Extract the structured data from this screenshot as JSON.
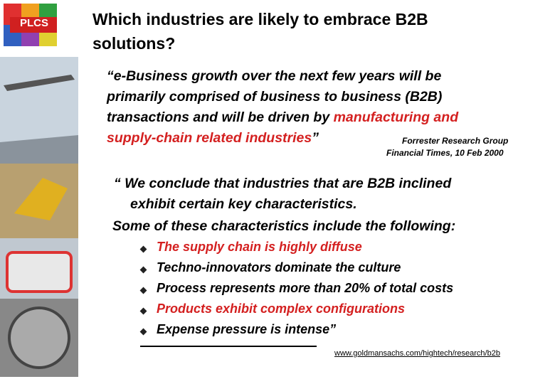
{
  "logo": "PLCS",
  "title": [
    "Which industries are likely to embrace B2B",
    "solutions?"
  ],
  "quote1": {
    "lines": [
      "“e-Business growth over the next few years will be",
      "primarily comprised of business to business (B2B)",
      "transactions and will be driven by "
    ],
    "highlight": [
      "manufacturing and",
      "supply-chain related industries"
    ],
    "close": "”"
  },
  "source": [
    "Forrester Research Group",
    "Financial Times, 10 Feb 2000"
  ],
  "quote2": [
    "“ We conclude that industries that are B2B inclined",
    "exhibit certain key characteristics.",
    "Some of these characteristics include the following:"
  ],
  "bullets": [
    {
      "text": "The supply chain is highly diffuse",
      "color": "#d42020"
    },
    {
      "text": "Techno-innovators dominate the culture",
      "color": "#000000"
    },
    {
      "text": "Process represents more than 20% of total costs",
      "color": "#000000"
    },
    {
      "text": "Products exhibit complex configurations",
      "color": "#d42020"
    },
    {
      "text": "Expense pressure is intense”",
      "color": "#000000"
    }
  ],
  "link": "www.goldmansachs.com/hightech/research/b2b"
}
